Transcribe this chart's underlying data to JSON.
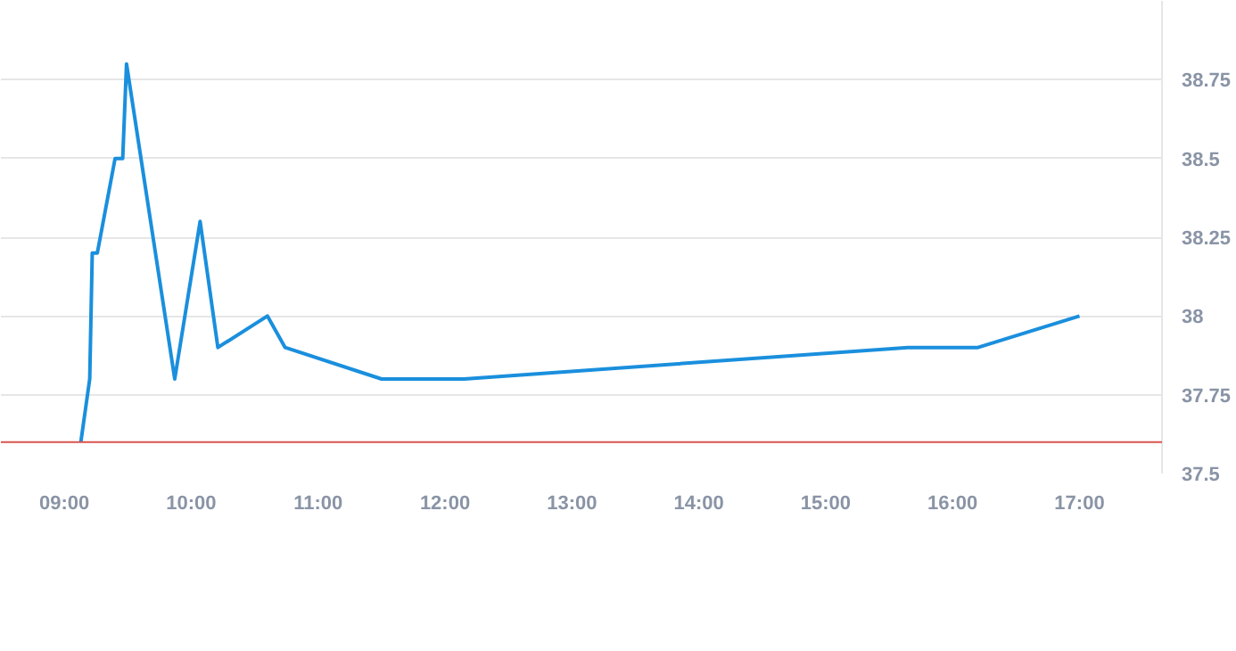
{
  "chart_data": {
    "type": "line",
    "x": [
      9.13,
      9.2,
      9.22,
      9.26,
      9.4,
      9.46,
      9.49,
      9.87,
      10.07,
      10.21,
      10.6,
      10.74,
      11.5,
      12.15,
      15.65,
      16.2,
      17.0
    ],
    "series": [
      {
        "color": "#1a8fdd",
        "values": [
          37.6,
          37.8,
          38.2,
          38.2,
          38.5,
          38.5,
          38.8,
          37.8,
          38.3,
          37.9,
          38.0,
          37.9,
          37.8,
          37.8,
          37.9,
          37.9,
          38.0
        ]
      }
    ],
    "xlim": [
      8.5,
      17.65
    ],
    "ylim": [
      37.5,
      39.0
    ],
    "xticks": [
      {
        "value": 9,
        "label": "09:00"
      },
      {
        "value": 10,
        "label": "10:00"
      },
      {
        "value": 11,
        "label": "11:00"
      },
      {
        "value": 12,
        "label": "12:00"
      },
      {
        "value": 13,
        "label": "13:00"
      },
      {
        "value": 14,
        "label": "14:00"
      },
      {
        "value": 15,
        "label": "15:00"
      },
      {
        "value": 16,
        "label": "16:00"
      },
      {
        "value": 17,
        "label": "17:00"
      }
    ],
    "yticks": [
      37.5,
      37.75,
      38,
      38.25,
      38.5,
      38.75
    ],
    "ref_lines": [
      {
        "axis": "y",
        "value": 37.6,
        "color": "#d9534f"
      }
    ],
    "grid": "y",
    "marker": "none",
    "line_style": "solid"
  }
}
